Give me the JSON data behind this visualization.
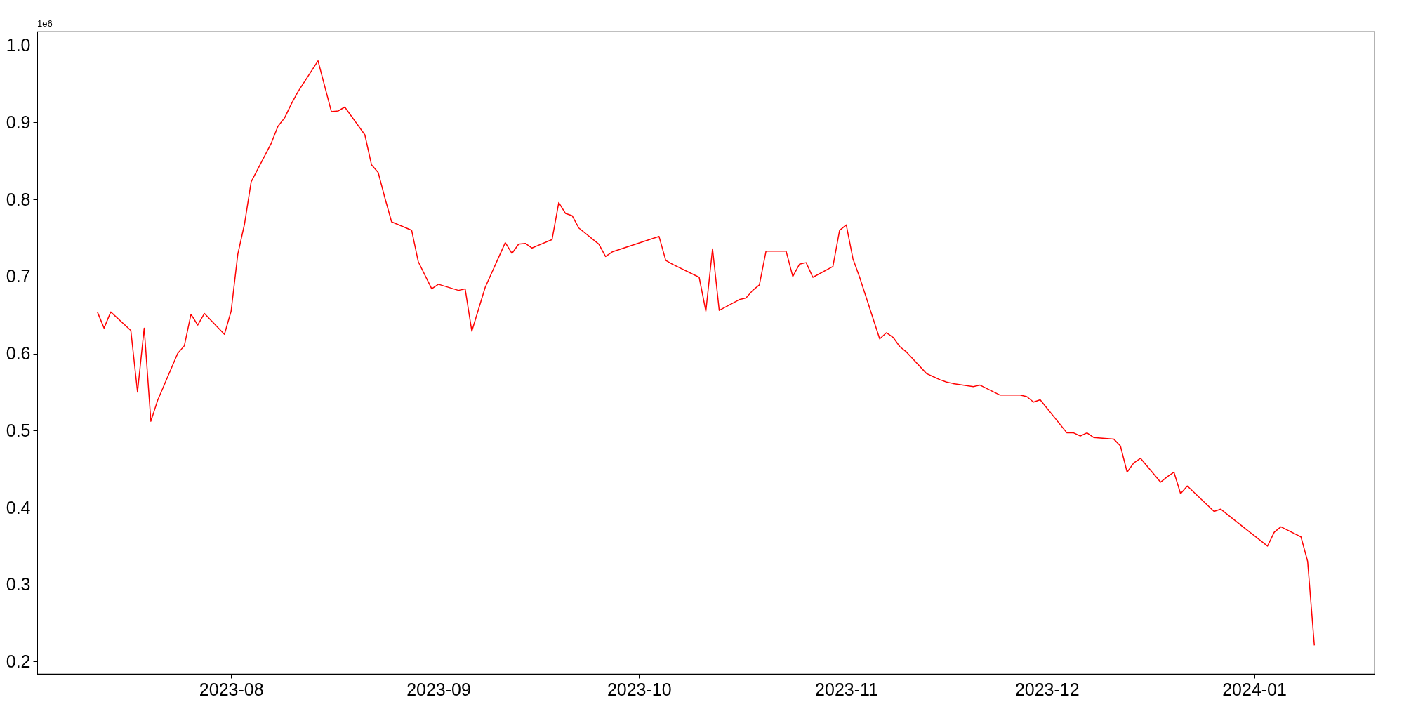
{
  "chart_data": {
    "type": "line",
    "annotations": [
      "1e6"
    ],
    "x": [
      "2023-07-12",
      "2023-07-13",
      "2023-07-14",
      "2023-07-17",
      "2023-07-18",
      "2023-07-19",
      "2023-07-20",
      "2023-07-21",
      "2023-07-24",
      "2023-07-25",
      "2023-07-26",
      "2023-07-27",
      "2023-07-28",
      "2023-07-31",
      "2023-08-01",
      "2023-08-02",
      "2023-08-03",
      "2023-08-04",
      "2023-08-07",
      "2023-08-08",
      "2023-08-09",
      "2023-08-10",
      "2023-08-11",
      "2023-08-14",
      "2023-08-16",
      "2023-08-17",
      "2023-08-18",
      "2023-08-21",
      "2023-08-22",
      "2023-08-23",
      "2023-08-24",
      "2023-08-25",
      "2023-08-28",
      "2023-08-29",
      "2023-08-31",
      "2023-09-01",
      "2023-09-04",
      "2023-09-05",
      "2023-09-06",
      "2023-09-08",
      "2023-09-11",
      "2023-09-12",
      "2023-09-13",
      "2023-09-14",
      "2023-09-15",
      "2023-09-18",
      "2023-09-19",
      "2023-09-20",
      "2023-09-21",
      "2023-09-22",
      "2023-09-25",
      "2023-09-26",
      "2023-09-27",
      "2023-10-04",
      "2023-10-05",
      "2023-10-06",
      "2023-10-10",
      "2023-10-11",
      "2023-10-12",
      "2023-10-13",
      "2023-10-16",
      "2023-10-17",
      "2023-10-18",
      "2023-10-19",
      "2023-10-20",
      "2023-10-23",
      "2023-10-24",
      "2023-10-25",
      "2023-10-26",
      "2023-10-27",
      "2023-10-30",
      "2023-10-31",
      "2023-11-01",
      "2023-11-02",
      "2023-11-03",
      "2023-11-06",
      "2023-11-07",
      "2023-11-08",
      "2023-11-09",
      "2023-11-10",
      "2023-11-13",
      "2023-11-14",
      "2023-11-15",
      "2023-11-16",
      "2023-11-17",
      "2023-11-20",
      "2023-11-21",
      "2023-11-24",
      "2023-11-27",
      "2023-11-28",
      "2023-11-29",
      "2023-11-30",
      "2023-12-04",
      "2023-12-05",
      "2023-12-06",
      "2023-12-07",
      "2023-12-08",
      "2023-12-11",
      "2023-12-12",
      "2023-12-13",
      "2023-12-14",
      "2023-12-15",
      "2023-12-18",
      "2023-12-19",
      "2023-12-20",
      "2023-12-21",
      "2023-12-22",
      "2023-12-26",
      "2023-12-27",
      "2023-12-28",
      "2024-01-03",
      "2024-01-04",
      "2024-01-05",
      "2024-01-08",
      "2024-01-09",
      "2024-01-10"
    ],
    "series": [
      {
        "color": "#ff0000",
        "values": [
          0.654,
          0.633,
          0.654,
          0.63,
          0.55,
          0.633,
          0.512,
          0.539,
          0.6,
          0.61,
          0.651,
          0.637,
          0.652,
          0.625,
          0.655,
          0.729,
          0.768,
          0.823,
          0.873,
          0.895,
          0.906,
          0.924,
          0.94,
          0.98,
          0.914,
          0.915,
          0.92,
          0.884,
          0.845,
          0.835,
          0.802,
          0.771,
          0.76,
          0.719,
          0.684,
          0.69,
          0.682,
          0.684,
          0.629,
          0.686,
          0.744,
          0.73,
          0.742,
          0.743,
          0.737,
          0.748,
          0.796,
          0.782,
          0.779,
          0.763,
          0.742,
          0.726,
          0.732,
          0.752,
          0.721,
          0.716,
          0.699,
          0.655,
          0.736,
          0.656,
          0.67,
          0.672,
          0.682,
          0.689,
          0.733,
          0.733,
          0.7,
          0.716,
          0.718,
          0.699,
          0.713,
          0.76,
          0.767,
          0.723,
          0.699,
          0.619,
          0.627,
          0.621,
          0.609,
          0.602,
          0.574,
          0.57,
          0.566,
          0.563,
          0.561,
          0.557,
          0.559,
          0.546,
          0.546,
          0.544,
          0.537,
          0.54,
          0.497,
          0.497,
          0.493,
          0.497,
          0.491,
          0.489,
          0.48,
          0.446,
          0.458,
          0.464,
          0.433,
          0.44,
          0.446,
          0.418,
          0.428,
          0.395,
          0.398,
          0.391,
          0.35,
          0.368,
          0.375,
          0.362,
          0.33,
          0.221
        ]
      }
    ],
    "xlim": [
      "2023-07-03",
      "2024-01-19"
    ],
    "xticks": [
      {
        "value": "2023-08-01",
        "label": "2023-08"
      },
      {
        "value": "2023-09-01",
        "label": "2023-09"
      },
      {
        "value": "2023-10-01",
        "label": "2023-10"
      },
      {
        "value": "2023-11-01",
        "label": "2023-11"
      },
      {
        "value": "2023-12-01",
        "label": "2023-12"
      },
      {
        "value": "2024-01-01",
        "label": "2024-01"
      }
    ],
    "ylim": [
      0.184,
      1.018
    ],
    "yticks": [
      0.2,
      0.3,
      0.4,
      0.5,
      0.6,
      0.7,
      0.8,
      0.9,
      {
        "value": 1,
        "label": "1.0"
      }
    ],
    "grid": false
  }
}
